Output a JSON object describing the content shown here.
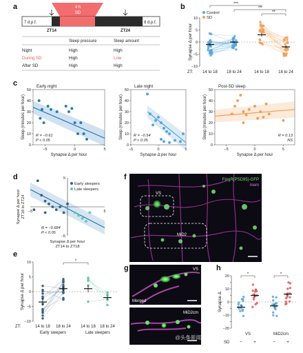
{
  "panel_letters": [
    "a",
    "b",
    "c",
    "d",
    "e",
    "f",
    "g",
    "h"
  ],
  "panel_a": {
    "sd_box": "4 h\nSD",
    "start_label": "7 d.p.f.",
    "end_label": "8 d.p.f.",
    "zt14": "ZT14",
    "zt24": "ZT24",
    "table_headers": [
      "Sleep pressure",
      "Sleep amount"
    ],
    "table_rows": [
      {
        "label": "Night",
        "pressure": "High",
        "amount": "High",
        "label_color": "#222222",
        "amount_color": "#222222"
      },
      {
        "label": "During SD",
        "pressure": "High",
        "amount": "Low",
        "label_color": "#e05b5b",
        "amount_color": "#e05b5b"
      },
      {
        "label": "After SD",
        "pressure": "High",
        "amount": "High",
        "label_color": "#222222",
        "amount_color": "#222222"
      }
    ],
    "colors": {
      "sd": "#f26d6d",
      "text": "#222222"
    }
  },
  "chart_data": [
    {
      "panel": "b",
      "type": "scatter",
      "ylabel": "Synapse Δ per hour",
      "xlabel_prefix": "ZT:",
      "categories": [
        "14 to 18",
        "18 to 24",
        "14 to 18",
        "18 to 24"
      ],
      "legend": [
        {
          "name": "Control",
          "color": "#5aa6d8"
        },
        {
          "name": "SD",
          "color": "#f0a05a"
        }
      ],
      "series": [
        {
          "name": "Control",
          "color": "#5aa6d8",
          "means": [
            -1.0,
            0.0
          ],
          "sem": [
            0.6,
            0.4
          ]
        },
        {
          "name": "SD",
          "color": "#f0a05a",
          "means": [
            3.0,
            -2.0
          ],
          "sem": [
            0.7,
            0.6
          ]
        }
      ],
      "ylim": [
        -10,
        10
      ],
      "yticks": [
        -10,
        -5,
        0,
        5,
        10
      ],
      "significance": [
        "***",
        "**",
        "**"
      ]
    },
    {
      "panel": "c1",
      "type": "scatter",
      "title": "Early night",
      "xlabel": "Synapse Δ per hour",
      "ylabel": "Sleep (minutes per hour)",
      "color": "#2b7bb9",
      "xlim": [
        -7,
        5
      ],
      "ylim": [
        0,
        50
      ],
      "xticks": [
        -5,
        0,
        5
      ],
      "yticks": [
        0,
        10,
        20,
        30,
        40,
        50
      ],
      "points": [
        [
          -6,
          40
        ],
        [
          -5.8,
          24
        ],
        [
          -5.5,
          32
        ],
        [
          -5.2,
          20
        ],
        [
          -4.5,
          35
        ],
        [
          -4,
          32
        ],
        [
          -1.5,
          35
        ],
        [
          -1,
          30
        ],
        [
          -0.5,
          33
        ],
        [
          0,
          20
        ],
        [
          0.5,
          10
        ],
        [
          1,
          20
        ],
        [
          1.5,
          10
        ],
        [
          2,
          5
        ],
        [
          -3,
          30
        ]
      ],
      "fit": {
        "x": [
          -7,
          5
        ],
        "y": [
          34,
          6
        ]
      },
      "stats": [
        "R = −0.61",
        "P < 0.05"
      ]
    },
    {
      "panel": "c2",
      "type": "scatter",
      "title": "Late night",
      "xlabel": "Synapse Δ per hour",
      "ylabel": "Sleep (minutes per hour)",
      "color": "#5aa6d8",
      "xlim": [
        -5,
        5
      ],
      "ylim": [
        0,
        50
      ],
      "xticks": [
        -5,
        0,
        5
      ],
      "yticks": [
        0,
        10,
        20,
        30,
        40,
        50
      ],
      "points": [
        [
          -2,
          46
        ],
        [
          -1.5,
          28
        ],
        [
          -1,
          18
        ],
        [
          -0.5,
          22
        ],
        [
          0,
          25
        ],
        [
          0.5,
          20
        ],
        [
          1,
          15
        ],
        [
          1.5,
          12
        ],
        [
          2,
          10
        ],
        [
          0.5,
          5
        ],
        [
          1,
          3
        ],
        [
          2,
          2
        ],
        [
          3,
          4
        ],
        [
          4,
          3
        ],
        [
          4.5,
          10
        ]
      ],
      "fit": {
        "x": [
          -2,
          5
        ],
        "y": [
          30,
          2
        ]
      },
      "stats": [
        "R = −0.54",
        "P < 0.05"
      ]
    },
    {
      "panel": "c3",
      "type": "scatter",
      "title": "Post-SD sleep",
      "xlabel": "Synapse Δ per hour",
      "ylabel": "Sleep (minutes per hour)",
      "color": "#f0a05a",
      "xlim": [
        -7,
        7
      ],
      "ylim": [
        0,
        50
      ],
      "xticks": [
        -5,
        0,
        5
      ],
      "yticks": [
        0,
        10,
        20,
        30,
        40,
        50
      ],
      "points": [
        [
          -4,
          28
        ],
        [
          -3.5,
          35
        ],
        [
          -3,
          40
        ],
        [
          -2.5,
          45
        ],
        [
          -2,
          30
        ],
        [
          -1.5,
          27
        ],
        [
          -1,
          32
        ],
        [
          0,
          35
        ],
        [
          0.5,
          24
        ],
        [
          1,
          30
        ],
        [
          1.5,
          25
        ],
        [
          2,
          37
        ],
        [
          2.5,
          28
        ],
        [
          -2,
          20
        ],
        [
          5,
          22
        ]
      ],
      "fit": {
        "x": [
          -7,
          7
        ],
        "y": [
          26,
          32
        ]
      },
      "stats": [
        "R = 0.13",
        "NS"
      ]
    },
    {
      "panel": "d",
      "type": "scatter",
      "xlabel": "Synapse Δ per hour\nZT14 to ZT18",
      "ylabel": "Synapse Δ per hour\nZT18 to ZT24",
      "legend": [
        {
          "name": "Early sleepers",
          "color": "#3d5f7a"
        },
        {
          "name": "Late sleepers",
          "color": "#5fc9a7"
        }
      ],
      "xlim": [
        -5,
        5
      ],
      "ylim": [
        -5,
        5
      ],
      "xticks": [
        -5,
        5
      ],
      "yticks": [
        -5,
        5
      ],
      "points_early": [
        [
          -4,
          4.5
        ],
        [
          -3.5,
          2
        ],
        [
          -3,
          1
        ],
        [
          -2.5,
          0.5
        ],
        [
          -2,
          0
        ],
        [
          -1.5,
          -0.5
        ],
        [
          -1,
          0
        ],
        [
          -0.5,
          -1
        ],
        [
          0,
          0.5
        ],
        [
          -4.5,
          -0.5
        ],
        [
          -3,
          -1
        ]
      ],
      "points_late": [
        [
          2,
          -2
        ],
        [
          1.5,
          -1.5
        ],
        [
          2.5,
          -2.5
        ],
        [
          3,
          -1
        ],
        [
          1,
          -1
        ]
      ],
      "fit": {
        "x": [
          -5,
          5
        ],
        "y": [
          3.0,
          -3.6
        ]
      },
      "stats": [
        "R = −0.684",
        "P < 0.05"
      ]
    },
    {
      "panel": "e",
      "type": "scatter",
      "ylabel": "Synapse Δ per hour",
      "xlabel_prefix": "ZT:",
      "categories": [
        "14 to 18",
        "18 to 24",
        "14 to 18",
        "18 to 24"
      ],
      "group_labels": [
        "Early sleepers",
        "Late sleepers"
      ],
      "means": [
        -3.5,
        1.0,
        1.0,
        -2.0
      ],
      "sem": [
        1.2,
        0.8,
        1.2,
        0.7
      ],
      "colors": [
        "#3d5f7a",
        "#3d5f7a",
        "#5fc9a7",
        "#5fc9a7"
      ],
      "ylim": [
        -10,
        10
      ],
      "yticks": [
        -10,
        -5,
        0,
        5,
        10
      ],
      "significance": [
        "*"
      ]
    },
    {
      "panel": "h",
      "type": "scatter",
      "ylabel": "Synapse Δ",
      "categories": [
        "VS",
        "MiD2cm"
      ],
      "sd_row_label": "SD",
      "sd_row": [
        "−",
        "+",
        "−",
        "+"
      ],
      "means": [
        -4.0,
        5.0,
        -3.0,
        6.0
      ],
      "sem": [
        1.5,
        1.5,
        1.5,
        1.5
      ],
      "colors": [
        "#5aa6d8",
        "#e05b5b",
        "#5aa6d8",
        "#e05b5b"
      ],
      "ylim": [
        -20,
        20
      ],
      "yticks": [
        -20,
        -15,
        -10,
        -5,
        0,
        5,
        10,
        15,
        20
      ],
      "significance": [
        "*",
        "*"
      ]
    }
  ],
  "micrographs": {
    "f": {
      "legend1": "FingR(PSD95)-GFP",
      "legend2": "mem",
      "labels": [
        "VS",
        "MiD2"
      ],
      "legend_colors": [
        "#7be07b",
        "#e07be0"
      ]
    },
    "g": {
      "labels": [
        "VS",
        "Merged",
        "MiD2cm"
      ]
    }
  },
  "watermark": "@头条新闻"
}
